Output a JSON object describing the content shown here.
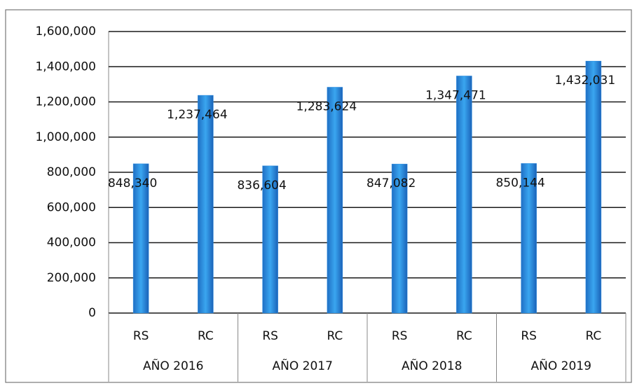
{
  "chart_data": {
    "type": "bar",
    "categories": [
      "RS",
      "RC",
      "RS",
      "RC",
      "RS",
      "RC",
      "RS",
      "RC"
    ],
    "groups": [
      "AÑO 2016",
      "AÑO 2017",
      "AÑO 2018",
      "AÑO 2019"
    ],
    "values": [
      848340,
      1237464,
      836604,
      1283624,
      847082,
      1347471,
      850144,
      1432031
    ],
    "value_labels": [
      "848,340",
      "1,237,464",
      "836,604",
      "1,283,624",
      "847,082",
      "1,347,471",
      "850,144",
      "1,432,031"
    ],
    "color": "#2f8ee0",
    "ylim": [
      0,
      1600000
    ],
    "yticks": [
      0,
      {
        "value": 200000,
        "label": "200,000"
      },
      {
        "value": 400000,
        "label": "400,000"
      },
      {
        "value": 600000,
        "label": "600,000"
      },
      {
        "value": 800000,
        "label": "800,000"
      },
      {
        "value": 1000000,
        "label": "1,000,000"
      },
      {
        "value": 1200000,
        "label": "1,200,000"
      },
      {
        "value": 1400000,
        "label": "1,400,000"
      },
      {
        "value": 1600000,
        "label": "1,600,000"
      }
    ],
    "grid": true
  }
}
